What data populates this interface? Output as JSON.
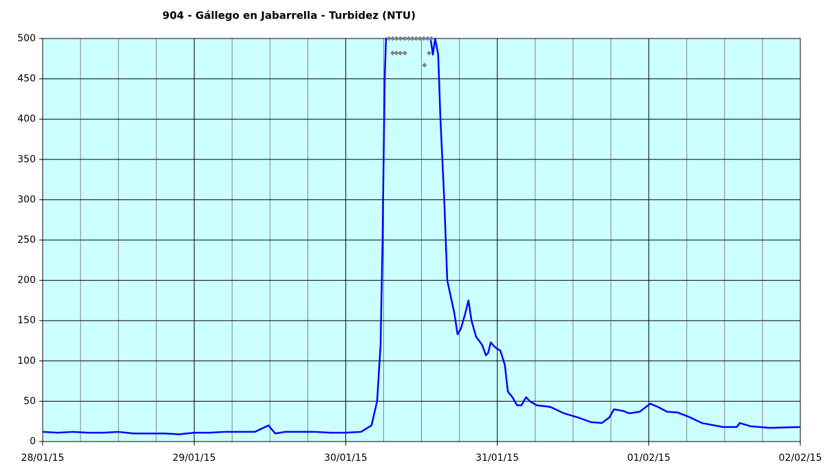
{
  "chart_data": {
    "type": "line",
    "title": "904 - Gállego en Jabarrella - Turbidez (NTU)",
    "xlim": [
      0,
      5
    ],
    "xticks": [
      {
        "value": 0,
        "label": "28/01/15"
      },
      {
        "value": 1,
        "label": "29/01/15"
      },
      {
        "value": 2,
        "label": "30/01/15"
      },
      {
        "value": 3,
        "label": "31/01/15"
      },
      {
        "value": 4,
        "label": "01/02/15"
      },
      {
        "value": 5,
        "label": "02/02/15"
      }
    ],
    "minor_divisions": 4,
    "ylim": [
      0,
      500
    ],
    "yticks": [
      0,
      50,
      100,
      150,
      200,
      250,
      300,
      350,
      400,
      450,
      500
    ],
    "grid": true,
    "background": "#ccffff",
    "series": [
      {
        "color": "#0000ff",
        "style": "line",
        "x": [
          0,
          0.1,
          0.2,
          0.3,
          0.4,
          0.5,
          0.6,
          0.7,
          0.8,
          0.9,
          1.0,
          1.1,
          1.2,
          1.3,
          1.4,
          1.49,
          1.535,
          1.6,
          1.7,
          1.8,
          1.9,
          2.0,
          2.1,
          2.17,
          2.207,
          2.23,
          2.243,
          2.257,
          2.266,
          2.4,
          2.56,
          2.575,
          2.59,
          2.61,
          2.625,
          2.65,
          2.67,
          2.716,
          2.738,
          2.76,
          2.79,
          2.81,
          2.83,
          2.86,
          2.9,
          2.925,
          2.94,
          2.957,
          2.98,
          3.0,
          3.02,
          3.05,
          3.07,
          3.1,
          3.13,
          3.16,
          3.19,
          3.215,
          3.26,
          3.35,
          3.44,
          3.53,
          3.62,
          3.69,
          3.74,
          3.77,
          3.83,
          3.87,
          3.94,
          4.01,
          4.06,
          4.12,
          4.19,
          4.26,
          4.35,
          4.49,
          4.58,
          4.6,
          4.67,
          4.8,
          5.0
        ],
        "values": [
          12,
          11,
          12,
          11,
          11,
          12,
          10,
          10,
          10,
          9,
          11,
          11,
          12,
          12,
          12,
          20,
          10,
          12,
          12,
          12,
          11,
          11,
          12,
          20,
          50,
          120,
          250,
          450,
          500,
          500,
          500,
          480,
          500,
          480,
          400,
          300,
          200,
          160,
          133,
          140,
          160,
          175,
          150,
          130,
          120,
          107,
          110,
          123,
          118,
          115,
          113,
          95,
          62,
          55,
          45,
          45,
          55,
          50,
          45,
          43,
          35,
          30,
          24,
          23,
          30,
          40,
          38,
          35,
          37,
          47,
          43,
          37,
          36,
          31,
          23,
          18,
          18,
          23,
          19,
          17,
          18
        ]
      },
      {
        "color": "#808080",
        "style": "markers",
        "x": [
          2.285,
          2.31,
          2.335,
          2.36,
          2.39,
          2.415,
          2.44,
          2.465,
          2.49,
          2.515,
          2.54,
          2.565,
          2.31,
          2.335,
          2.36,
          2.39,
          2.52,
          2.55
        ],
        "values": [
          500,
          500,
          500,
          500,
          500,
          500,
          500,
          500,
          500,
          500,
          500,
          500,
          482,
          482,
          482,
          482,
          467,
          482
        ]
      }
    ]
  }
}
